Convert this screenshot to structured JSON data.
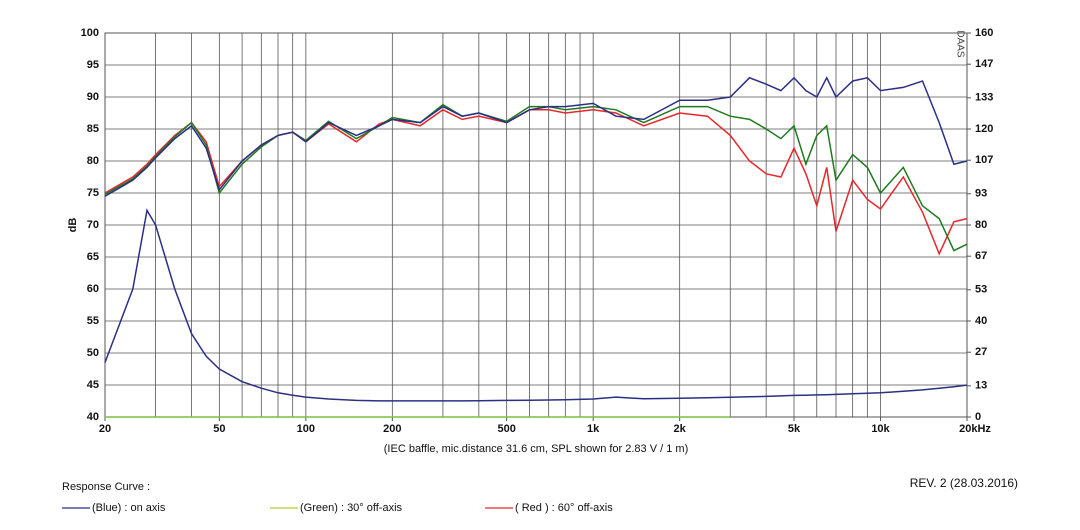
{
  "chart_data": {
    "type": "line",
    "ylabel": "dB",
    "logo": "DAAS",
    "xlabel": "(IEC baffle, mic.distance 31.6 cm, SPL shown for 2.83 V / 1 m)",
    "legend_title": "Response Curve :",
    "revision": "REV. 2 (28.03.2016)",
    "xscale": "log",
    "grid": true,
    "xlim": [
      20,
      20000
    ],
    "xticks": [
      20,
      50,
      100,
      200,
      500,
      {
        "value": 1000,
        "label": "1k"
      },
      {
        "value": 2000,
        "label": "2k"
      },
      {
        "value": 5000,
        "label": "5k"
      },
      {
        "value": 10000,
        "label": "10k"
      },
      {
        "value": 20000,
        "label": "20kHz"
      }
    ],
    "xgrid": [
      20,
      30,
      40,
      50,
      60,
      70,
      80,
      90,
      100,
      200,
      300,
      400,
      500,
      600,
      700,
      800,
      900,
      1000,
      2000,
      3000,
      4000,
      5000,
      6000,
      7000,
      8000,
      9000,
      10000,
      20000
    ],
    "ylim": [
      40,
      100
    ],
    "yticks": [
      40,
      45,
      50,
      55,
      60,
      65,
      70,
      75,
      80,
      85,
      90,
      95,
      100
    ],
    "y2lim": [
      0,
      160
    ],
    "y2ticks": [
      0,
      13,
      27,
      40,
      53,
      67,
      80,
      93,
      107,
      120,
      133,
      147,
      160
    ],
    "x": [
      20,
      25,
      28,
      30,
      35,
      40,
      45,
      50,
      60,
      70,
      80,
      90,
      100,
      120,
      150,
      180,
      200,
      250,
      300,
      350,
      400,
      500,
      600,
      700,
      800,
      1000,
      1200,
      1500,
      2000,
      2500,
      3000,
      3500,
      4000,
      4500,
      5000,
      5500,
      6000,
      6500,
      7000,
      8000,
      9000,
      10000,
      12000,
      14000,
      16000,
      18000,
      20000
    ],
    "series": [
      {
        "name": "(Blue) : on axis",
        "color": "#2b2f86",
        "values": [
          74.5,
          77,
          79,
          80.5,
          83.5,
          85.5,
          82,
          75.5,
          80,
          82.5,
          84,
          84.5,
          83,
          86,
          84,
          85.5,
          86.5,
          86,
          88.5,
          87,
          87.5,
          86,
          88,
          88.5,
          88.5,
          89,
          87,
          86.5,
          89.5,
          89.5,
          90,
          93,
          92,
          91,
          93,
          91,
          90,
          93,
          90,
          92.5,
          93,
          91,
          91.5,
          92.5,
          86,
          79.5,
          80
        ]
      },
      {
        "name": "(Green) : 30° off-axis",
        "color": "#1f7a1f",
        "legend_color": "#b5cc2e",
        "values": [
          74.8,
          77.2,
          79.2,
          80.7,
          83.8,
          86,
          82.5,
          75,
          79.5,
          82.2,
          84,
          84.5,
          83.2,
          86.2,
          83.5,
          85.5,
          86.8,
          86,
          88.8,
          87,
          87.5,
          86.2,
          88.5,
          88.5,
          88,
          88.5,
          88,
          86,
          88.5,
          88.5,
          87,
          86.5,
          85,
          83.5,
          85.5,
          79.5,
          84,
          85.5,
          77,
          81,
          79,
          75,
          79,
          73,
          71,
          66,
          67
        ]
      },
      {
        "name": "( Red ) : 60° off-axis",
        "color": "#e8262b",
        "values": [
          75,
          77.5,
          79.5,
          81,
          84,
          86,
          83,
          76,
          80,
          82.5,
          84,
          84.5,
          83,
          85.8,
          83,
          85.8,
          86.5,
          85.5,
          88,
          86.5,
          87,
          86,
          88,
          88,
          87.5,
          88,
          87.5,
          85.5,
          87.5,
          87,
          84,
          80,
          78,
          77.5,
          82,
          78,
          73,
          79,
          69,
          77,
          74,
          72.5,
          77.5,
          72,
          65.5,
          70.5,
          71
        ]
      },
      {
        "color": "#2b2f86",
        "axis": "y2",
        "values": [
          22.7,
          53.3,
          86.1,
          80,
          53.3,
          34.7,
          25.3,
          20,
          14.7,
          12,
          10.1,
          9.1,
          8.3,
          7.5,
          6.9,
          6.7,
          6.7,
          6.7,
          6.7,
          6.7,
          6.8,
          6.9,
          7,
          7.1,
          7.2,
          7.5,
          8.3,
          7.6,
          7.8,
          8,
          8.2,
          8.4,
          8.6,
          8.8,
          9,
          9.1,
          9.2,
          9.3,
          9.4,
          9.7,
          9.9,
          10.1,
          10.7,
          11.3,
          12,
          12.6,
          13.3
        ]
      },
      {
        "color": "#7ac143",
        "values": [
          40,
          40,
          40,
          40,
          40,
          40,
          40,
          40,
          40,
          40,
          40,
          40,
          40,
          40,
          40,
          40,
          40,
          40,
          40,
          40,
          40,
          40,
          40,
          40,
          40,
          40,
          40,
          40,
          40,
          40,
          40,
          null,
          null,
          null,
          null,
          null,
          null,
          null,
          null,
          null,
          null,
          null,
          null,
          null,
          null,
          null,
          null
        ]
      }
    ]
  }
}
